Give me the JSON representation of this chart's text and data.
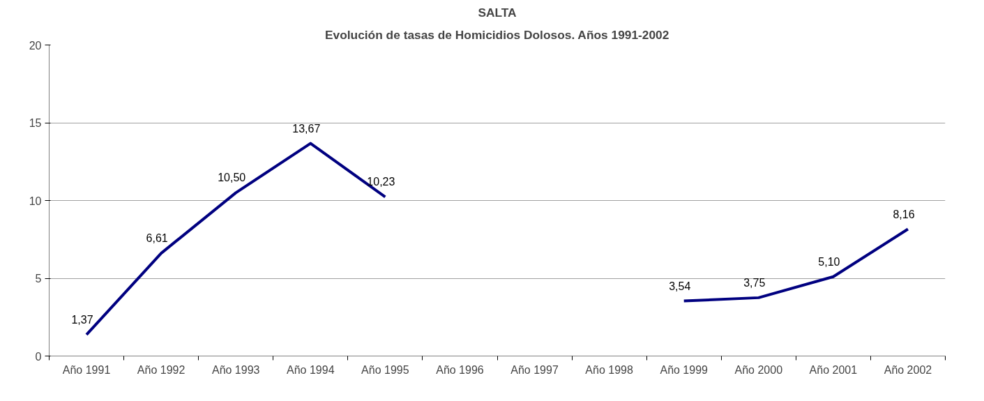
{
  "chart_data": {
    "type": "line",
    "title": "SALTA",
    "subtitle": "Evolución de tasas de Homicidios Dolosos. Años 1991-2002",
    "categories": [
      "Año 1991",
      "Año 1992",
      "Año 1993",
      "Año 1994",
      "Año 1995",
      "Año 1996",
      "Año 1997",
      "Año 1998",
      "Año 1999",
      "Año 2000",
      "Año 2001",
      "Año 2002"
    ],
    "series": [
      {
        "color": "#000080",
        "values": [
          1.37,
          6.61,
          10.5,
          13.67,
          10.23,
          null,
          null,
          null,
          3.54,
          3.75,
          5.1,
          8.16
        ],
        "value_labels": [
          "1,37",
          "6,61",
          "10,50",
          "13,67",
          "10,23",
          null,
          null,
          null,
          "3,54",
          "3,75",
          "5,10",
          "8,16"
        ]
      }
    ],
    "ylim": [
      0,
      20
    ],
    "yticks": [
      0,
      5,
      10,
      15,
      20
    ],
    "grid": "y"
  }
}
